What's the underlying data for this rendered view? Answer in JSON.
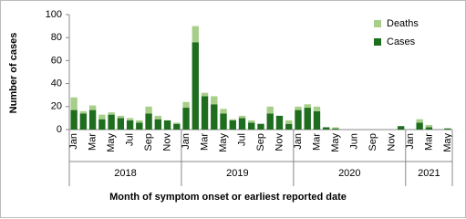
{
  "chart_data": {
    "type": "stacked_bar",
    "y_label": "Number of cases",
    "x_label": "Month of symptom onset or earliest reported date",
    "categories": [
      "Jan",
      null,
      "Mar",
      null,
      "May",
      null,
      "Jul",
      null,
      "Sep",
      null,
      "Nov",
      null,
      "Jan",
      null,
      "Mar",
      null,
      "May",
      null,
      "Jul",
      null,
      "Sep",
      null,
      "Nov",
      null,
      "Jan",
      null,
      "Mar",
      null,
      "May",
      null,
      "Jun",
      null,
      "Sep",
      null,
      "Nov",
      null,
      "Jan",
      null,
      "Mar",
      null,
      "May"
    ],
    "groups": [
      "2018",
      "2019",
      "2020",
      "2021"
    ],
    "series": [
      {
        "name": "Cases",
        "color": "#1f6e1f",
        "values": [
          17,
          14,
          17,
          9,
          13,
          10,
          8,
          6,
          14,
          9,
          8,
          5,
          19,
          76,
          29,
          22,
          14,
          8,
          10,
          6,
          5,
          14,
          12,
          5,
          17,
          19,
          16,
          2,
          1,
          0,
          0,
          0,
          0,
          0,
          0,
          3,
          0,
          6,
          2,
          0,
          1
        ]
      },
      {
        "name": "Deaths",
        "color": "#a8cf8a",
        "values": [
          11,
          2,
          4,
          4,
          2,
          2,
          2,
          2,
          6,
          3,
          0,
          1,
          5,
          14,
          3,
          7,
          4,
          1,
          2,
          2,
          0,
          6,
          0,
          3,
          3,
          3,
          4,
          0,
          1,
          0,
          0,
          0,
          0,
          0,
          0,
          0,
          0,
          3,
          2,
          0,
          0
        ]
      }
    ],
    "ylim": [
      0,
      100
    ],
    "yticks": [
      0,
      20,
      40,
      60,
      80,
      100
    ],
    "legend": "top-right"
  }
}
